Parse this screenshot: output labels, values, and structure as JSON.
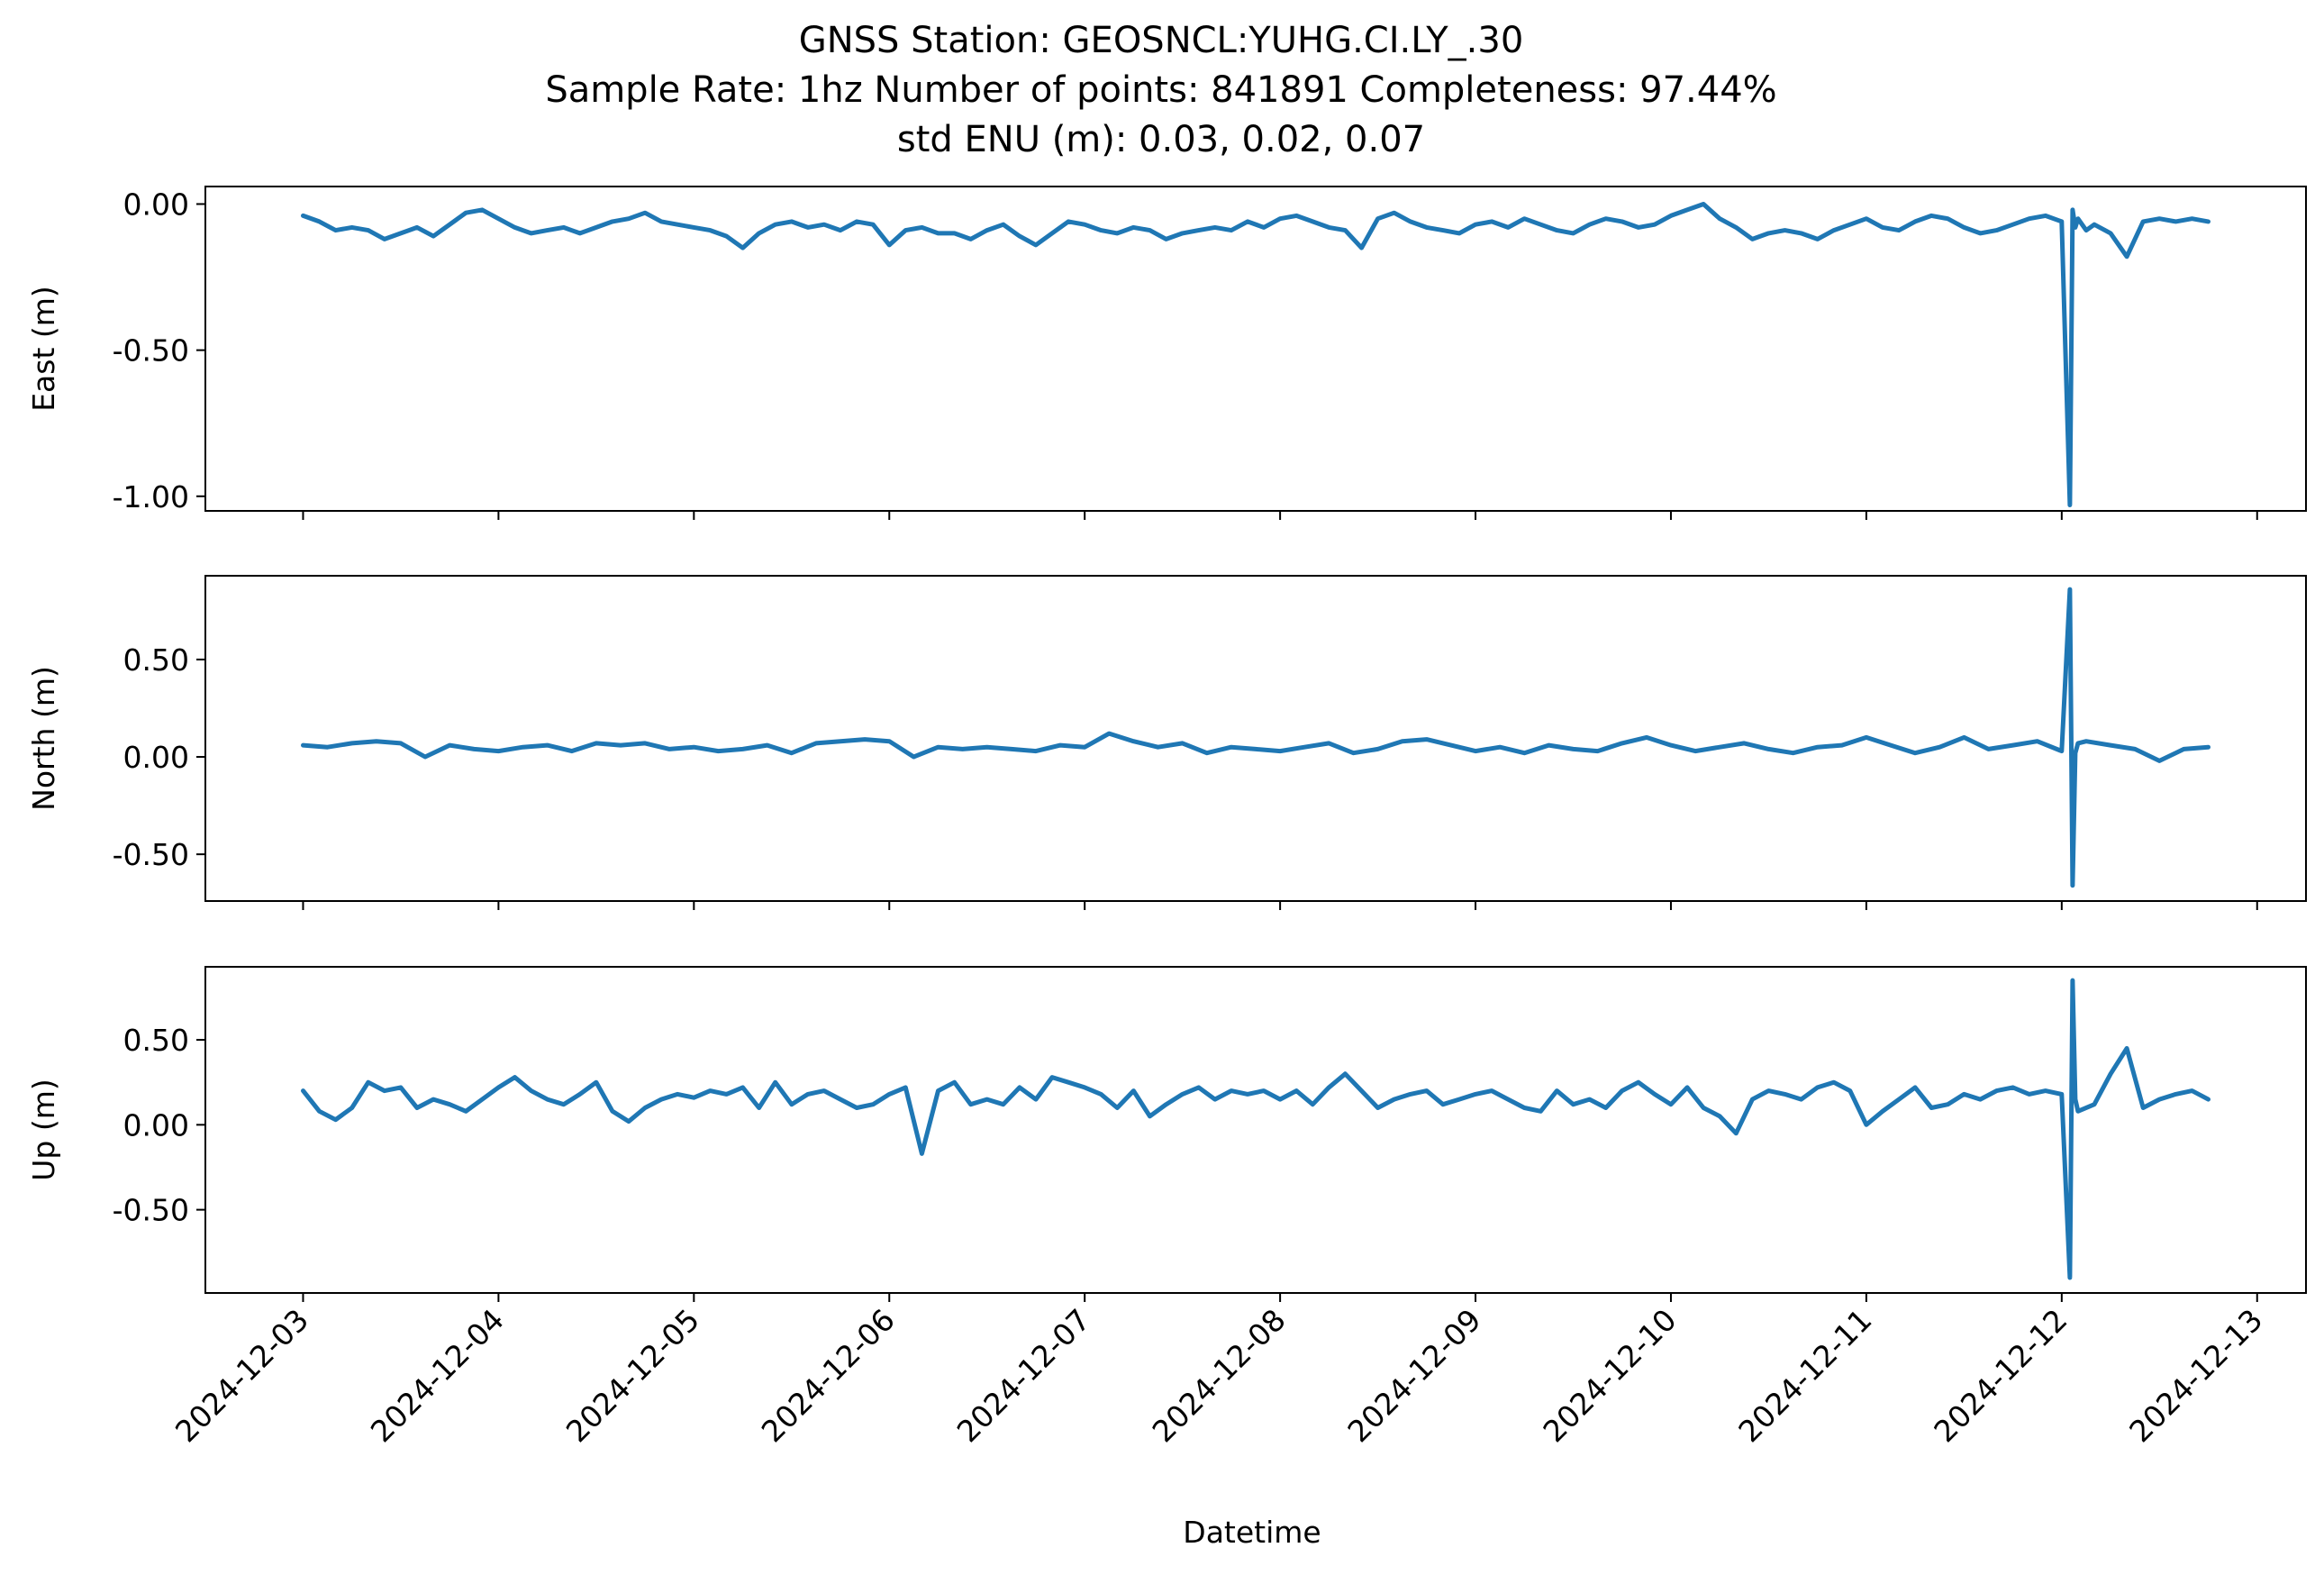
{
  "title_lines": [
    "GNSS Station: GEOSNCL:YUHG.CI.LY_.30",
    "Sample Rate: 1hz   Number of points: 841891    Completeness:  97.44%",
    "std ENU (m):  0.03, 0.02, 0.07"
  ],
  "xlabel": "Datetime",
  "colors": {
    "series": "#1f77b4",
    "axes": "#000000",
    "background": "#ffffff"
  },
  "chart_data": [
    {
      "type": "line",
      "name": "east",
      "ylabel": "East (m)",
      "ylim": [
        -1.05,
        0.06
      ],
      "yticks": [
        0.0,
        -0.5,
        -1.0
      ],
      "yticklabels": [
        "0.00",
        "-0.50",
        "-1.00"
      ],
      "xlim": [
        "2024-12-02T12:00",
        "2024-12-13T06:00"
      ],
      "xticks": [
        "2024-12-03",
        "2024-12-04",
        "2024-12-05",
        "2024-12-06",
        "2024-12-07",
        "2024-12-08",
        "2024-12-09",
        "2024-12-10",
        "2024-12-11",
        "2024-12-12",
        "2024-12-13"
      ],
      "grid": false,
      "x": [
        "2024-12-03T00:00",
        "2024-12-03T02:00",
        "2024-12-03T04:00",
        "2024-12-03T06:00",
        "2024-12-03T08:00",
        "2024-12-03T10:00",
        "2024-12-03T12:00",
        "2024-12-03T14:00",
        "2024-12-03T16:00",
        "2024-12-03T18:00",
        "2024-12-03T20:00",
        "2024-12-03T22:00",
        "2024-12-04T00:00",
        "2024-12-04T02:00",
        "2024-12-04T04:00",
        "2024-12-04T06:00",
        "2024-12-04T08:00",
        "2024-12-04T10:00",
        "2024-12-04T12:00",
        "2024-12-04T14:00",
        "2024-12-04T16:00",
        "2024-12-04T18:00",
        "2024-12-04T20:00",
        "2024-12-04T22:00",
        "2024-12-05T00:00",
        "2024-12-05T02:00",
        "2024-12-05T04:00",
        "2024-12-05T06:00",
        "2024-12-05T08:00",
        "2024-12-05T10:00",
        "2024-12-05T12:00",
        "2024-12-05T14:00",
        "2024-12-05T16:00",
        "2024-12-05T18:00",
        "2024-12-05T20:00",
        "2024-12-05T22:00",
        "2024-12-06T00:00",
        "2024-12-06T02:00",
        "2024-12-06T04:00",
        "2024-12-06T06:00",
        "2024-12-06T08:00",
        "2024-12-06T10:00",
        "2024-12-06T12:00",
        "2024-12-06T14:00",
        "2024-12-06T16:00",
        "2024-12-06T18:00",
        "2024-12-06T20:00",
        "2024-12-06T22:00",
        "2024-12-07T00:00",
        "2024-12-07T02:00",
        "2024-12-07T04:00",
        "2024-12-07T06:00",
        "2024-12-07T08:00",
        "2024-12-07T10:00",
        "2024-12-07T12:00",
        "2024-12-07T14:00",
        "2024-12-07T16:00",
        "2024-12-07T18:00",
        "2024-12-07T20:00",
        "2024-12-07T22:00",
        "2024-12-08T00:00",
        "2024-12-08T02:00",
        "2024-12-08T04:00",
        "2024-12-08T06:00",
        "2024-12-08T08:00",
        "2024-12-08T10:00",
        "2024-12-08T12:00",
        "2024-12-08T14:00",
        "2024-12-08T16:00",
        "2024-12-08T18:00",
        "2024-12-08T20:00",
        "2024-12-08T22:00",
        "2024-12-09T00:00",
        "2024-12-09T02:00",
        "2024-12-09T04:00",
        "2024-12-09T06:00",
        "2024-12-09T08:00",
        "2024-12-09T10:00",
        "2024-12-09T12:00",
        "2024-12-09T14:00",
        "2024-12-09T16:00",
        "2024-12-09T18:00",
        "2024-12-09T20:00",
        "2024-12-09T22:00",
        "2024-12-10T00:00",
        "2024-12-10T02:00",
        "2024-12-10T04:00",
        "2024-12-10T06:00",
        "2024-12-10T08:00",
        "2024-12-10T10:00",
        "2024-12-10T12:00",
        "2024-12-10T14:00",
        "2024-12-10T16:00",
        "2024-12-10T18:00",
        "2024-12-10T20:00",
        "2024-12-10T22:00",
        "2024-12-11T00:00",
        "2024-12-11T02:00",
        "2024-12-11T04:00",
        "2024-12-11T06:00",
        "2024-12-11T08:00",
        "2024-12-11T10:00",
        "2024-12-11T12:00",
        "2024-12-11T14:00",
        "2024-12-11T16:00",
        "2024-12-11T18:00",
        "2024-12-11T20:00",
        "2024-12-11T22:00",
        "2024-12-12T00:00",
        "2024-12-12T01:00",
        "2024-12-12T01:20",
        "2024-12-12T01:40",
        "2024-12-12T02:00",
        "2024-12-12T03:00",
        "2024-12-12T04:00",
        "2024-12-12T06:00",
        "2024-12-12T08:00",
        "2024-12-12T10:00",
        "2024-12-12T12:00",
        "2024-12-12T14:00",
        "2024-12-12T16:00",
        "2024-12-12T18:00"
      ],
      "values": [
        -0.04,
        -0.06,
        -0.09,
        -0.08,
        -0.09,
        -0.12,
        -0.1,
        -0.08,
        -0.11,
        -0.07,
        -0.03,
        -0.02,
        -0.05,
        -0.08,
        -0.1,
        -0.09,
        -0.08,
        -0.1,
        -0.08,
        -0.06,
        -0.05,
        -0.03,
        -0.06,
        -0.07,
        -0.08,
        -0.09,
        -0.11,
        -0.15,
        -0.1,
        -0.07,
        -0.06,
        -0.08,
        -0.07,
        -0.09,
        -0.06,
        -0.07,
        -0.14,
        -0.09,
        -0.08,
        -0.1,
        -0.1,
        -0.12,
        -0.09,
        -0.07,
        -0.11,
        -0.14,
        -0.1,
        -0.06,
        -0.07,
        -0.09,
        -0.1,
        -0.08,
        -0.09,
        -0.12,
        -0.1,
        -0.09,
        -0.08,
        -0.09,
        -0.06,
        -0.08,
        -0.05,
        -0.04,
        -0.06,
        -0.08,
        -0.09,
        -0.15,
        -0.05,
        -0.03,
        -0.06,
        -0.08,
        -0.09,
        -0.1,
        -0.07,
        -0.06,
        -0.08,
        -0.05,
        -0.07,
        -0.09,
        -0.1,
        -0.07,
        -0.05,
        -0.06,
        -0.08,
        -0.07,
        -0.04,
        -0.02,
        0.0,
        -0.05,
        -0.08,
        -0.12,
        -0.1,
        -0.09,
        -0.1,
        -0.12,
        -0.09,
        -0.07,
        -0.05,
        -0.08,
        -0.09,
        -0.06,
        -0.04,
        -0.05,
        -0.08,
        -0.1,
        -0.09,
        -0.07,
        -0.05,
        -0.04,
        -0.06,
        -1.03,
        -0.02,
        -0.08,
        -0.05,
        -0.09,
        -0.07,
        -0.1,
        -0.18,
        -0.06,
        -0.05,
        -0.06,
        -0.05,
        -0.06
      ]
    },
    {
      "type": "line",
      "name": "north",
      "ylabel": "North (m)",
      "ylim": [
        -0.74,
        0.93
      ],
      "yticks": [
        0.5,
        0.0,
        -0.5
      ],
      "yticklabels": [
        "0.50",
        "0.00",
        "-0.50"
      ],
      "xlim": [
        "2024-12-02T12:00",
        "2024-12-13T06:00"
      ],
      "xticks": [
        "2024-12-03",
        "2024-12-04",
        "2024-12-05",
        "2024-12-06",
        "2024-12-07",
        "2024-12-08",
        "2024-12-09",
        "2024-12-10",
        "2024-12-11",
        "2024-12-12",
        "2024-12-13"
      ],
      "grid": false,
      "x": [
        "2024-12-03T00:00",
        "2024-12-03T03:00",
        "2024-12-03T06:00",
        "2024-12-03T09:00",
        "2024-12-03T12:00",
        "2024-12-03T15:00",
        "2024-12-03T18:00",
        "2024-12-03T21:00",
        "2024-12-04T00:00",
        "2024-12-04T03:00",
        "2024-12-04T06:00",
        "2024-12-04T09:00",
        "2024-12-04T12:00",
        "2024-12-04T15:00",
        "2024-12-04T18:00",
        "2024-12-04T21:00",
        "2024-12-05T00:00",
        "2024-12-05T03:00",
        "2024-12-05T06:00",
        "2024-12-05T09:00",
        "2024-12-05T12:00",
        "2024-12-05T15:00",
        "2024-12-05T18:00",
        "2024-12-05T21:00",
        "2024-12-06T00:00",
        "2024-12-06T03:00",
        "2024-12-06T06:00",
        "2024-12-06T09:00",
        "2024-12-06T12:00",
        "2024-12-06T15:00",
        "2024-12-06T18:00",
        "2024-12-06T21:00",
        "2024-12-07T00:00",
        "2024-12-07T03:00",
        "2024-12-07T06:00",
        "2024-12-07T09:00",
        "2024-12-07T12:00",
        "2024-12-07T15:00",
        "2024-12-07T18:00",
        "2024-12-07T21:00",
        "2024-12-08T00:00",
        "2024-12-08T03:00",
        "2024-12-08T06:00",
        "2024-12-08T09:00",
        "2024-12-08T12:00",
        "2024-12-08T15:00",
        "2024-12-08T18:00",
        "2024-12-08T21:00",
        "2024-12-09T00:00",
        "2024-12-09T03:00",
        "2024-12-09T06:00",
        "2024-12-09T09:00",
        "2024-12-09T12:00",
        "2024-12-09T15:00",
        "2024-12-09T18:00",
        "2024-12-09T21:00",
        "2024-12-10T00:00",
        "2024-12-10T03:00",
        "2024-12-10T06:00",
        "2024-12-10T09:00",
        "2024-12-10T12:00",
        "2024-12-10T15:00",
        "2024-12-10T18:00",
        "2024-12-10T21:00",
        "2024-12-11T00:00",
        "2024-12-11T03:00",
        "2024-12-11T06:00",
        "2024-12-11T09:00",
        "2024-12-11T12:00",
        "2024-12-11T15:00",
        "2024-12-11T18:00",
        "2024-12-11T21:00",
        "2024-12-12T00:00",
        "2024-12-12T01:00",
        "2024-12-12T01:20",
        "2024-12-12T01:40",
        "2024-12-12T02:00",
        "2024-12-12T03:00",
        "2024-12-12T06:00",
        "2024-12-12T09:00",
        "2024-12-12T12:00",
        "2024-12-12T15:00",
        "2024-12-12T18:00"
      ],
      "values": [
        0.06,
        0.05,
        0.07,
        0.08,
        0.07,
        0.0,
        0.06,
        0.04,
        0.03,
        0.05,
        0.06,
        0.03,
        0.07,
        0.06,
        0.07,
        0.04,
        0.05,
        0.03,
        0.04,
        0.06,
        0.02,
        0.07,
        0.08,
        0.09,
        0.08,
        0.0,
        0.05,
        0.04,
        0.05,
        0.04,
        0.03,
        0.06,
        0.05,
        0.12,
        0.08,
        0.05,
        0.07,
        0.02,
        0.05,
        0.04,
        0.03,
        0.05,
        0.07,
        0.02,
        0.04,
        0.08,
        0.09,
        0.06,
        0.03,
        0.05,
        0.02,
        0.06,
        0.04,
        0.03,
        0.07,
        0.1,
        0.06,
        0.03,
        0.05,
        0.07,
        0.04,
        0.02,
        0.05,
        0.06,
        0.1,
        0.06,
        0.02,
        0.05,
        0.1,
        0.04,
        0.06,
        0.08,
        0.03,
        0.86,
        -0.66,
        0.02,
        0.07,
        0.08,
        0.06,
        0.04,
        -0.02,
        0.04,
        0.05
      ]
    },
    {
      "type": "line",
      "name": "up",
      "ylabel": "Up (m)",
      "ylim": [
        -0.99,
        0.93
      ],
      "yticks": [
        0.5,
        0.0,
        -0.5
      ],
      "yticklabels": [
        "0.50",
        "0.00",
        "-0.50"
      ],
      "xlim": [
        "2024-12-02T12:00",
        "2024-12-13T06:00"
      ],
      "xticks": [
        "2024-12-03",
        "2024-12-04",
        "2024-12-05",
        "2024-12-06",
        "2024-12-07",
        "2024-12-08",
        "2024-12-09",
        "2024-12-10",
        "2024-12-11",
        "2024-12-12",
        "2024-12-13"
      ],
      "grid": false,
      "x": [
        "2024-12-03T00:00",
        "2024-12-03T02:00",
        "2024-12-03T04:00",
        "2024-12-03T06:00",
        "2024-12-03T08:00",
        "2024-12-03T10:00",
        "2024-12-03T12:00",
        "2024-12-03T14:00",
        "2024-12-03T16:00",
        "2024-12-03T18:00",
        "2024-12-03T20:00",
        "2024-12-03T22:00",
        "2024-12-04T00:00",
        "2024-12-04T02:00",
        "2024-12-04T04:00",
        "2024-12-04T06:00",
        "2024-12-04T08:00",
        "2024-12-04T10:00",
        "2024-12-04T12:00",
        "2024-12-04T14:00",
        "2024-12-04T16:00",
        "2024-12-04T18:00",
        "2024-12-04T20:00",
        "2024-12-04T22:00",
        "2024-12-05T00:00",
        "2024-12-05T02:00",
        "2024-12-05T04:00",
        "2024-12-05T06:00",
        "2024-12-05T08:00",
        "2024-12-05T10:00",
        "2024-12-05T12:00",
        "2024-12-05T14:00",
        "2024-12-05T16:00",
        "2024-12-05T18:00",
        "2024-12-05T20:00",
        "2024-12-05T22:00",
        "2024-12-06T00:00",
        "2024-12-06T02:00",
        "2024-12-06T04:00",
        "2024-12-06T06:00",
        "2024-12-06T08:00",
        "2024-12-06T10:00",
        "2024-12-06T12:00",
        "2024-12-06T14:00",
        "2024-12-06T16:00",
        "2024-12-06T18:00",
        "2024-12-06T20:00",
        "2024-12-06T22:00",
        "2024-12-07T00:00",
        "2024-12-07T02:00",
        "2024-12-07T04:00",
        "2024-12-07T06:00",
        "2024-12-07T08:00",
        "2024-12-07T10:00",
        "2024-12-07T12:00",
        "2024-12-07T14:00",
        "2024-12-07T16:00",
        "2024-12-07T18:00",
        "2024-12-07T20:00",
        "2024-12-07T22:00",
        "2024-12-08T00:00",
        "2024-12-08T02:00",
        "2024-12-08T04:00",
        "2024-12-08T06:00",
        "2024-12-08T08:00",
        "2024-12-08T10:00",
        "2024-12-08T12:00",
        "2024-12-08T14:00",
        "2024-12-08T16:00",
        "2024-12-08T18:00",
        "2024-12-08T20:00",
        "2024-12-08T22:00",
        "2024-12-09T00:00",
        "2024-12-09T02:00",
        "2024-12-09T04:00",
        "2024-12-09T06:00",
        "2024-12-09T08:00",
        "2024-12-09T10:00",
        "2024-12-09T12:00",
        "2024-12-09T14:00",
        "2024-12-09T16:00",
        "2024-12-09T18:00",
        "2024-12-09T20:00",
        "2024-12-09T22:00",
        "2024-12-10T00:00",
        "2024-12-10T02:00",
        "2024-12-10T04:00",
        "2024-12-10T06:00",
        "2024-12-10T08:00",
        "2024-12-10T10:00",
        "2024-12-10T12:00",
        "2024-12-10T14:00",
        "2024-12-10T16:00",
        "2024-12-10T18:00",
        "2024-12-10T20:00",
        "2024-12-10T22:00",
        "2024-12-11T00:00",
        "2024-12-11T02:00",
        "2024-12-11T04:00",
        "2024-12-11T06:00",
        "2024-12-11T08:00",
        "2024-12-11T10:00",
        "2024-12-11T12:00",
        "2024-12-11T14:00",
        "2024-12-11T16:00",
        "2024-12-11T18:00",
        "2024-12-11T20:00",
        "2024-12-11T22:00",
        "2024-12-12T00:00",
        "2024-12-12T01:00",
        "2024-12-12T01:20",
        "2024-12-12T01:40",
        "2024-12-12T02:00",
        "2024-12-12T04:00",
        "2024-12-12T06:00",
        "2024-12-12T08:00",
        "2024-12-12T10:00",
        "2024-12-12T12:00",
        "2024-12-12T14:00",
        "2024-12-12T16:00",
        "2024-12-12T18:00"
      ],
      "values": [
        0.2,
        0.08,
        0.03,
        0.1,
        0.25,
        0.2,
        0.22,
        0.1,
        0.15,
        0.12,
        0.08,
        0.15,
        0.22,
        0.28,
        0.2,
        0.15,
        0.12,
        0.18,
        0.25,
        0.08,
        0.02,
        0.1,
        0.15,
        0.18,
        0.16,
        0.2,
        0.18,
        0.22,
        0.1,
        0.25,
        0.12,
        0.18,
        0.2,
        0.15,
        0.1,
        0.12,
        0.18,
        0.22,
        -0.17,
        0.2,
        0.25,
        0.12,
        0.15,
        0.12,
        0.22,
        0.15,
        0.28,
        0.25,
        0.22,
        0.18,
        0.1,
        0.2,
        0.05,
        0.12,
        0.18,
        0.22,
        0.15,
        0.2,
        0.18,
        0.2,
        0.15,
        0.2,
        0.12,
        0.22,
        0.3,
        0.2,
        0.1,
        0.15,
        0.18,
        0.2,
        0.12,
        0.15,
        0.18,
        0.2,
        0.15,
        0.1,
        0.08,
        0.2,
        0.12,
        0.15,
        0.1,
        0.2,
        0.25,
        0.18,
        0.12,
        0.22,
        0.1,
        0.05,
        -0.05,
        0.15,
        0.2,
        0.18,
        0.15,
        0.22,
        0.25,
        0.2,
        0.0,
        0.08,
        0.15,
        0.22,
        0.1,
        0.12,
        0.18,
        0.15,
        0.2,
        0.22,
        0.18,
        0.2,
        0.18,
        -0.9,
        0.85,
        0.15,
        0.08,
        0.12,
        0.3,
        0.45,
        0.1,
        0.15,
        0.18,
        0.2,
        0.15
      ]
    }
  ]
}
